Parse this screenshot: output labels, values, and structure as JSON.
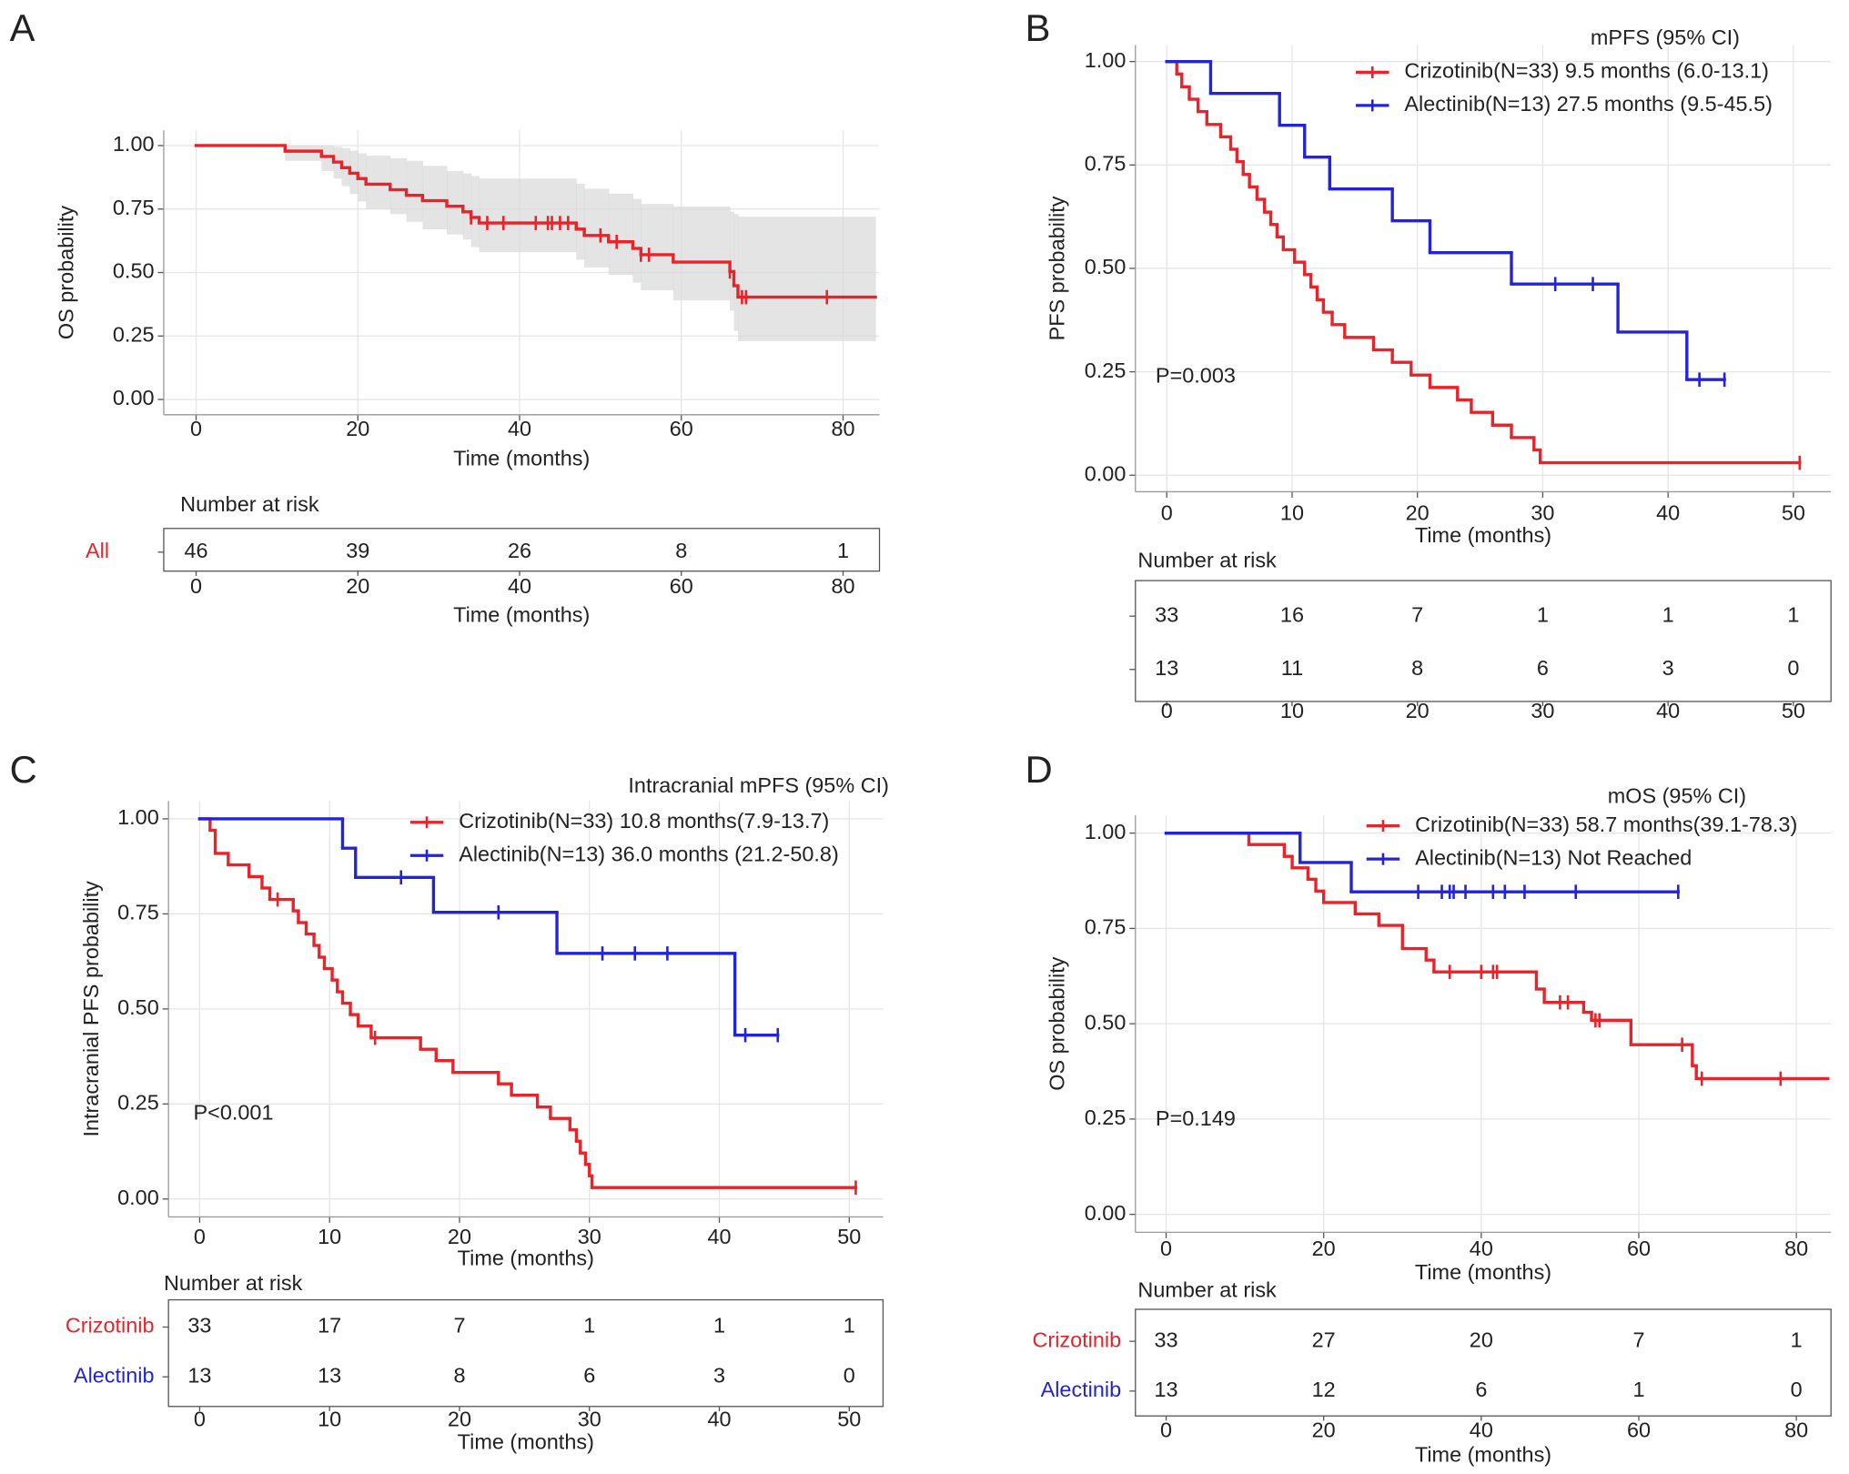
{
  "chart_data": [
    {
      "panel": "A",
      "type": "line",
      "ylabel": "OS probability",
      "xlabel": "Time (months)",
      "xlim": [
        -4,
        84.5
      ],
      "ylim": [
        -0.06,
        1.06
      ],
      "xticks": [
        0,
        20,
        40,
        60,
        80
      ],
      "yticks": [
        {
          "value": 0,
          "label": "0.00"
        },
        {
          "value": 0.25,
          "label": "0.25"
        },
        {
          "value": 0.5,
          "label": "0.50"
        },
        {
          "value": 0.75,
          "label": "0.75"
        },
        {
          "value": 1,
          "label": "1.00"
        }
      ],
      "grid": true,
      "series": [
        {
          "color": "#e8232a",
          "x": [
            0,
            11,
            15.5,
            17,
            18,
            19,
            20,
            21,
            24,
            26,
            28,
            31,
            33,
            34,
            35,
            47,
            48,
            51,
            54,
            55,
            59,
            66,
            66.5,
            67
          ],
          "values": [
            1,
            0.978,
            0.957,
            0.935,
            0.913,
            0.891,
            0.87,
            0.848,
            0.826,
            0.804,
            0.783,
            0.761,
            0.739,
            0.717,
            0.695,
            0.671,
            0.646,
            0.621,
            0.595,
            0.57,
            0.541,
            0.504,
            0.448,
            0.403
          ],
          "upper": [
            1,
            1,
            1,
            0.995,
            0.99,
            0.98,
            0.97,
            0.96,
            0.95,
            0.94,
            0.92,
            0.9,
            0.89,
            0.88,
            0.87,
            0.85,
            0.83,
            0.81,
            0.79,
            0.77,
            0.76,
            0.74,
            0.73,
            0.72
          ],
          "lower": [
            1,
            0.94,
            0.9,
            0.87,
            0.84,
            0.81,
            0.78,
            0.75,
            0.73,
            0.7,
            0.67,
            0.65,
            0.63,
            0.6,
            0.58,
            0.55,
            0.52,
            0.49,
            0.46,
            0.43,
            0.39,
            0.35,
            0.27,
            0.23
          ],
          "censor_x": [
            34,
            36,
            38,
            42,
            43.5,
            44,
            45,
            46,
            50,
            52,
            55,
            56,
            66,
            67.5,
            68,
            78
          ],
          "end_x": 84
        }
      ],
      "risk_table": {
        "title": "Number at risk",
        "xlabel": "Time (months)",
        "rows": [
          {
            "name": "All",
            "color": "#e8232a",
            "values": [
              46,
              39,
              26,
              8,
              1
            ]
          }
        ]
      }
    },
    {
      "panel": "B",
      "type": "line",
      "ylabel": "PFS probability",
      "xlabel": "Time (months)",
      "xlim": [
        -2.5,
        53
      ],
      "ylim": [
        -0.04,
        1.04
      ],
      "xticks": [
        0,
        10,
        20,
        30,
        40,
        50
      ],
      "yticks": [
        {
          "value": 0,
          "label": "0.00"
        },
        {
          "value": 0.25,
          "label": "0.25"
        },
        {
          "value": 0.5,
          "label": "0.50"
        },
        {
          "value": 0.75,
          "label": "0.75"
        },
        {
          "value": 1,
          "label": "1.00"
        }
      ],
      "grid": true,
      "legend_title": "mPFS (95% CI)",
      "annotation": "P=0.003",
      "series": [
        {
          "name": "Crizotinib(N=33) 9.5 months (6.0-13.1)",
          "color": "#e8232a",
          "x": [
            0,
            0.8,
            1.2,
            1.8,
            2.5,
            3.2,
            4.3,
            5.1,
            5.6,
            6.1,
            6.6,
            7.2,
            7.8,
            8.3,
            8.8,
            9.3,
            10.2,
            11,
            11.5,
            12,
            12.5,
            13.2,
            14.2,
            16.5,
            18,
            19.5,
            21,
            23.2,
            24.3,
            26,
            27.5,
            29.3,
            29.8
          ],
          "values": [
            1,
            0.97,
            0.939,
            0.909,
            0.879,
            0.848,
            0.818,
            0.788,
            0.758,
            0.727,
            0.697,
            0.667,
            0.636,
            0.606,
            0.576,
            0.545,
            0.515,
            0.485,
            0.455,
            0.424,
            0.394,
            0.364,
            0.333,
            0.303,
            0.273,
            0.242,
            0.212,
            0.182,
            0.152,
            0.121,
            0.091,
            0.061,
            0.03
          ],
          "censor_x": [
            50.5
          ]
        },
        {
          "name": "Alectinib(N=13) 27.5 months (9.5-45.5)",
          "color": "#2323d8",
          "x": [
            0,
            3.5,
            9,
            11,
            13,
            18,
            21,
            27.5,
            36,
            41.5
          ],
          "values": [
            1,
            0.923,
            0.846,
            0.769,
            0.692,
            0.615,
            0.538,
            0.462,
            0.346,
            0.231
          ],
          "censor_x": [
            31,
            34,
            42.5,
            44.5
          ]
        }
      ],
      "risk_table": {
        "title": "Number at risk",
        "rows": [
          {
            "values": [
              33,
              16,
              7,
              1,
              1,
              1
            ]
          },
          {
            "values": [
              13,
              11,
              8,
              6,
              3,
              0
            ]
          }
        ]
      }
    },
    {
      "panel": "C",
      "type": "line",
      "ylabel": "Intracranial PFS probability",
      "xlabel": "Time (months)",
      "xlim": [
        -2.4,
        52.6
      ],
      "ylim": [
        -0.047,
        1.047
      ],
      "xticks": [
        0,
        10,
        20,
        30,
        40,
        50
      ],
      "yticks": [
        {
          "value": 0,
          "label": "0.00"
        },
        {
          "value": 0.25,
          "label": "0.25"
        },
        {
          "value": 0.5,
          "label": "0.50"
        },
        {
          "value": 0.75,
          "label": "0.75"
        },
        {
          "value": 1,
          "label": "1.00"
        }
      ],
      "grid": true,
      "legend_title": "Intracranial mPFS (95% CI)",
      "annotation": "P<0.001",
      "series": [
        {
          "name": "Crizotinib(N=33) 10.8 months(7.9-13.7)",
          "color": "#e8232a",
          "x": [
            0,
            0.8,
            1.2,
            2.2,
            3.8,
            4.8,
            5.4,
            7.2,
            7.6,
            8.2,
            8.8,
            9.2,
            9.6,
            10.2,
            10.6,
            11,
            11.6,
            12.2,
            13.2,
            17,
            18.2,
            19.5,
            23,
            24,
            26,
            27,
            28.5,
            29,
            29.3,
            29.7,
            30,
            30.2
          ],
          "values": [
            1,
            0.97,
            0.909,
            0.879,
            0.848,
            0.818,
            0.788,
            0.758,
            0.727,
            0.697,
            0.667,
            0.636,
            0.606,
            0.576,
            0.545,
            0.515,
            0.485,
            0.455,
            0.424,
            0.394,
            0.364,
            0.333,
            0.303,
            0.273,
            0.242,
            0.212,
            0.182,
            0.152,
            0.121,
            0.091,
            0.061,
            0.03
          ],
          "censor_x": [
            6,
            13.5,
            50.5
          ]
        },
        {
          "name": "Alectinib(N=13) 36.0 months (21.2-50.8)",
          "color": "#2323d8",
          "x": [
            0,
            11,
            12,
            18,
            27.5,
            41.2
          ],
          "values": [
            1,
            0.923,
            0.846,
            0.754,
            0.646,
            0.431
          ],
          "censor_x": [
            15.5,
            23,
            31,
            33.5,
            36,
            42,
            44.5
          ]
        }
      ],
      "risk_table": {
        "title": "Number at risk",
        "xlabel": "Time (months)",
        "rows": [
          {
            "name": "Crizotinib",
            "color": "#e8232a",
            "values": [
              33,
              17,
              7,
              1,
              1,
              1
            ]
          },
          {
            "name": "Alectinib",
            "color": "#2323d8",
            "values": [
              13,
              13,
              8,
              6,
              3,
              0
            ]
          }
        ]
      }
    },
    {
      "panel": "D",
      "type": "line",
      "ylabel": "OS probability",
      "xlabel": "Time (months)",
      "xlim": [
        -3.9,
        84.4
      ],
      "ylim": [
        -0.047,
        1.047
      ],
      "xticks": [
        0,
        20,
        40,
        60,
        80
      ],
      "yticks": [
        {
          "value": 0,
          "label": "0.00"
        },
        {
          "value": 0.25,
          "label": "0.25"
        },
        {
          "value": 0.5,
          "label": "0.50"
        },
        {
          "value": 0.75,
          "label": "0.75"
        },
        {
          "value": 1,
          "label": "1.00"
        }
      ],
      "grid": true,
      "legend_title": "mOS (95% CI)",
      "annotation": "P=0.149",
      "series": [
        {
          "name": "Crizotinib(N=33) 58.7 months(39.1-78.3)",
          "color": "#e8232a",
          "x": [
            0,
            10.5,
            15,
            16,
            18,
            19,
            20,
            24,
            27,
            30,
            33,
            34,
            47,
            48,
            53,
            54,
            59,
            66.8,
            67.3
          ],
          "values": [
            1,
            0.97,
            0.939,
            0.909,
            0.879,
            0.848,
            0.818,
            0.788,
            0.758,
            0.697,
            0.667,
            0.636,
            0.591,
            0.556,
            0.53,
            0.509,
            0.445,
            0.39,
            0.356
          ],
          "censor_x": [
            36,
            40,
            41.5,
            42,
            50,
            51,
            54.5,
            55,
            65.5,
            68,
            78
          ],
          "end_x": 84
        },
        {
          "name": "Alectinib(N=13) Not Reached",
          "color": "#2323d8",
          "x": [
            0,
            17,
            23.5
          ],
          "values": [
            1,
            0.923,
            0.846
          ],
          "censor_x": [
            32,
            35,
            36,
            36.5,
            38,
            41.5,
            43,
            45.5,
            52,
            65
          ]
        }
      ],
      "risk_table": {
        "title": "Number at risk",
        "xlabel": "Time (months)",
        "rows": [
          {
            "name": "Crizotinib",
            "color": "#e8232a",
            "values": [
              33,
              27,
              20,
              7,
              1
            ]
          },
          {
            "name": "Alectinib",
            "color": "#2323d8",
            "values": [
              13,
              12,
              6,
              1,
              0
            ]
          }
        ]
      }
    }
  ]
}
